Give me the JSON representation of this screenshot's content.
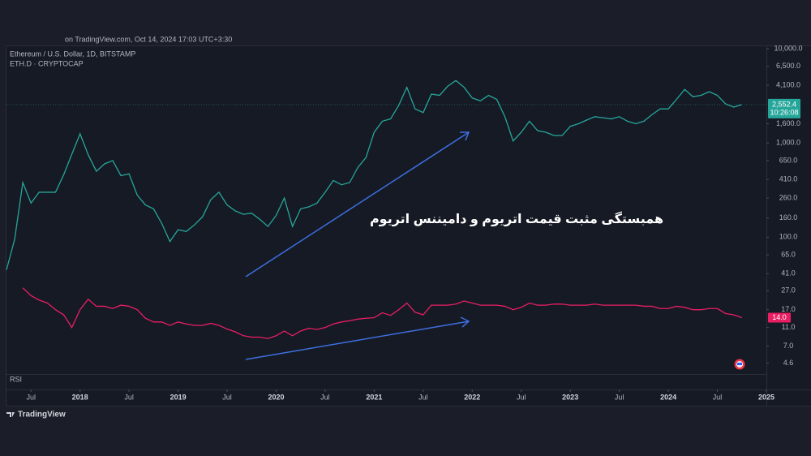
{
  "chart_data": {
    "type": "line",
    "source_note": "on TradingView.com, Oct 14, 2024 17:03 UTC+3:30",
    "annotation": "همبستگی مثبت قیمت اتریوم و دامیننس اتریوم",
    "pane_label": "RSI",
    "brand": "TradingView",
    "log_scale": true,
    "grid": false,
    "x": [
      "2017-04",
      "2017-05",
      "2017-06",
      "2017-07",
      "2017-08",
      "2017-09",
      "2017-10",
      "2017-11",
      "2017-12",
      "2018-01",
      "2018-02",
      "2018-03",
      "2018-04",
      "2018-05",
      "2018-06",
      "2018-07",
      "2018-08",
      "2018-09",
      "2018-10",
      "2018-11",
      "2018-12",
      "2019-01",
      "2019-02",
      "2019-03",
      "2019-04",
      "2019-05",
      "2019-06",
      "2019-07",
      "2019-08",
      "2019-09",
      "2019-10",
      "2019-11",
      "2019-12",
      "2020-01",
      "2020-02",
      "2020-03",
      "2020-04",
      "2020-05",
      "2020-06",
      "2020-07",
      "2020-08",
      "2020-09",
      "2020-10",
      "2020-11",
      "2020-12",
      "2021-01",
      "2021-02",
      "2021-03",
      "2021-04",
      "2021-05",
      "2021-06",
      "2021-07",
      "2021-08",
      "2021-09",
      "2021-10",
      "2021-11",
      "2021-12",
      "2022-01",
      "2022-02",
      "2022-03",
      "2022-04",
      "2022-05",
      "2022-06",
      "2022-07",
      "2022-08",
      "2022-09",
      "2022-10",
      "2022-11",
      "2022-12",
      "2023-01",
      "2023-02",
      "2023-03",
      "2023-04",
      "2023-05",
      "2023-06",
      "2023-07",
      "2023-08",
      "2023-09",
      "2023-10",
      "2023-11",
      "2023-12",
      "2024-01",
      "2024-02",
      "2024-03",
      "2024-04",
      "2024-05",
      "2024-06",
      "2024-07",
      "2024-08",
      "2024-09",
      "2024-10"
    ],
    "series": [
      {
        "name": "Ethereum / U.S. Dollar, 1D, BITSTAMP",
        "color": "#26a69a",
        "values": [
          45,
          95,
          380,
          230,
          300,
          300,
          300,
          460,
          760,
          1250,
          750,
          500,
          600,
          650,
          450,
          470,
          280,
          220,
          200,
          140,
          90,
          120,
          115,
          135,
          165,
          250,
          300,
          220,
          190,
          175,
          180,
          155,
          130,
          170,
          260,
          130,
          200,
          210,
          230,
          300,
          400,
          360,
          380,
          550,
          700,
          1300,
          1700,
          1800,
          2500,
          3900,
          2300,
          2100,
          3300,
          3200,
          4000,
          4600,
          3900,
          3000,
          2800,
          3200,
          2900,
          1900,
          1050,
          1300,
          1700,
          1350,
          1300,
          1200,
          1200,
          1500,
          1600,
          1750,
          1900,
          1850,
          1800,
          1900,
          1700,
          1600,
          1700,
          2000,
          2300,
          2300,
          2900,
          3700,
          3100,
          3200,
          3500,
          3200,
          2600,
          2400,
          2552.4
        ],
        "last_label": {
          "value": 2552.4,
          "label": "2,552.4"
        },
        "countdown": "10:26:08",
        "label_color": "#26a69a"
      },
      {
        "name": "ETH.D · CRYPTOCAP",
        "color": "#e91e63",
        "values": [
          null,
          null,
          29,
          24,
          21.5,
          20,
          17,
          15,
          11,
          17,
          22,
          18.5,
          18.5,
          17.5,
          19,
          18.5,
          17,
          13.8,
          12.6,
          12.6,
          11.6,
          12.6,
          12,
          11.6,
          11.6,
          12.2,
          11.6,
          10.6,
          9.9,
          9,
          8.7,
          8.7,
          8.4,
          9,
          10.1,
          9,
          10.1,
          10.8,
          10.5,
          11,
          12,
          12.6,
          13,
          13.5,
          13.8,
          14,
          15.8,
          14.8,
          17,
          20,
          16,
          15,
          19,
          19,
          19,
          19.5,
          21,
          20,
          19,
          19,
          19,
          18.5,
          17,
          18,
          20,
          19,
          19,
          19.5,
          19.5,
          19,
          19,
          19,
          19.5,
          19,
          19,
          19,
          19,
          19,
          18.5,
          18.5,
          17.5,
          17.5,
          18.5,
          18,
          17,
          17,
          17.5,
          17.5,
          15.5,
          15,
          14
        ],
        "last_label": {
          "value": 14,
          "label": "14.0"
        },
        "label_color": "#e91e63"
      }
    ],
    "xlim": [
      "2017-04",
      "2025-01"
    ],
    "xticks": [
      {
        "value": "2017-07",
        "label": "Jul"
      },
      {
        "value": "2018-01",
        "label": "2018"
      },
      {
        "value": "2018-07",
        "label": "Jul"
      },
      {
        "value": "2019-01",
        "label": "2019"
      },
      {
        "value": "2019-07",
        "label": "Jul"
      },
      {
        "value": "2020-01",
        "label": "2020"
      },
      {
        "value": "2020-07",
        "label": "Jul"
      },
      {
        "value": "2021-01",
        "label": "2021"
      },
      {
        "value": "2021-07",
        "label": "Jul"
      },
      {
        "value": "2022-01",
        "label": "2022"
      },
      {
        "value": "2022-07",
        "label": "Jul"
      },
      {
        "value": "2023-01",
        "label": "2023"
      },
      {
        "value": "2023-07",
        "label": "Jul"
      },
      {
        "value": "2024-01",
        "label": "2024"
      },
      {
        "value": "2024-07",
        "label": "Jul"
      },
      {
        "value": "2025-01",
        "label": "2025"
      }
    ],
    "ylim": [
      3.6,
      12700
    ],
    "yticks": [
      {
        "value": 10000,
        "label": "10,000.0"
      },
      {
        "value": 6500,
        "label": "6,500.0"
      },
      {
        "value": 4100,
        "label": "4,100.0"
      },
      {
        "value": 1600,
        "label": "1,600.0"
      },
      {
        "value": 1000,
        "label": "1,000.0"
      },
      {
        "value": 650,
        "label": "650.0"
      },
      {
        "value": 410,
        "label": "410.0"
      },
      {
        "value": 260,
        "label": "260.0"
      },
      {
        "value": 160,
        "label": "160.0"
      },
      {
        "value": 100,
        "label": "100.0"
      },
      {
        "value": 65,
        "label": "65.0"
      },
      {
        "value": 41,
        "label": "41.0"
      },
      {
        "value": 27,
        "label": "27.0"
      },
      {
        "value": 17,
        "label": "17.0"
      },
      {
        "value": 11,
        "label": "11.0"
      },
      {
        "value": 7,
        "label": "7.0"
      },
      4.6
    ]
  }
}
